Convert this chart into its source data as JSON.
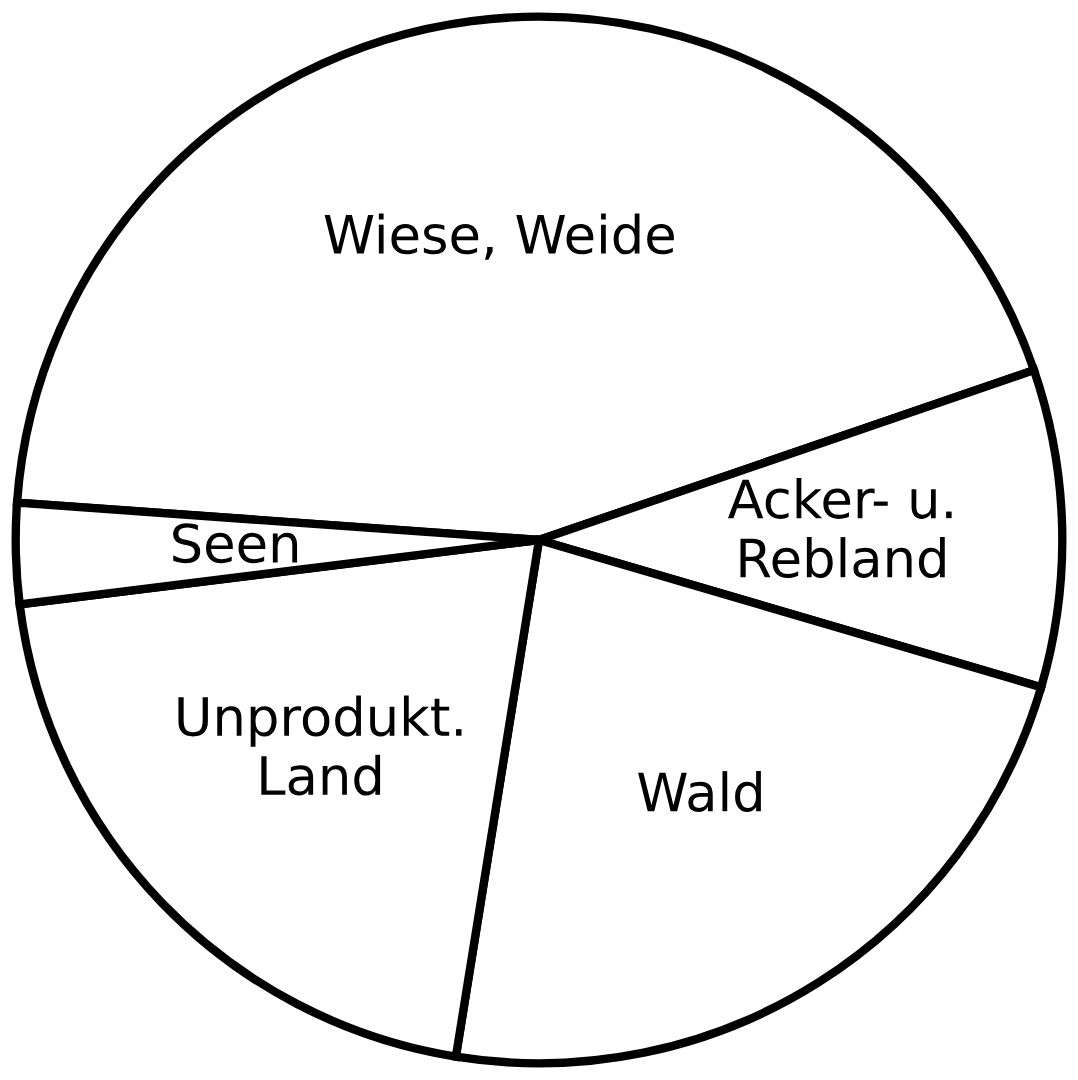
{
  "chart_data": {
    "type": "pie",
    "categories": [
      "Wiese, Weide",
      "Acker- u.\nRebland",
      "Wald",
      "Unprodukt.\nLand",
      "Seen"
    ],
    "values": [
      43.6,
      9.8,
      23.0,
      20.5,
      3.1
    ],
    "colors": [
      "#ffffff",
      "#ffffff",
      "#ffffff",
      "#ffffff",
      "#ffffff"
    ]
  }
}
